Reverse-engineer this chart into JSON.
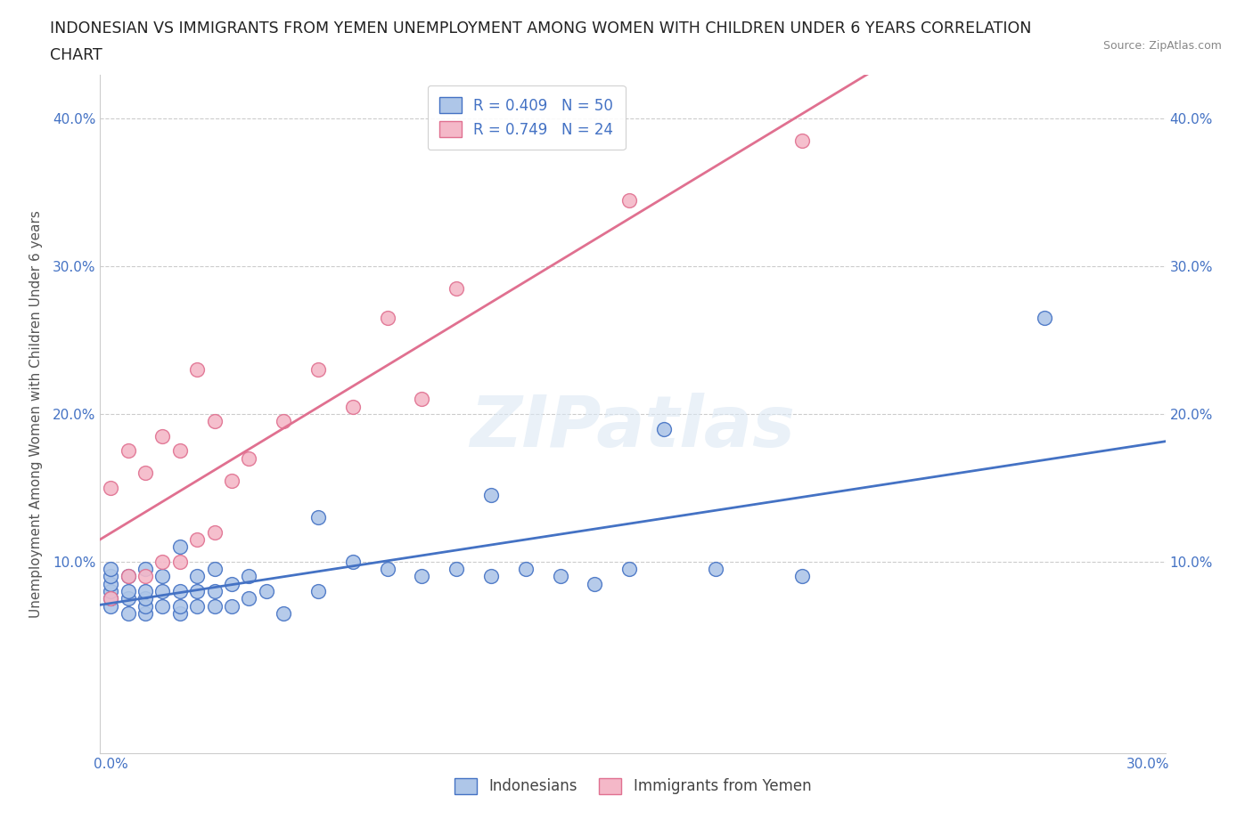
{
  "title_line1": "INDONESIAN VS IMMIGRANTS FROM YEMEN UNEMPLOYMENT AMONG WOMEN WITH CHILDREN UNDER 6 YEARS CORRELATION",
  "title_line2": "CHART",
  "source": "Source: ZipAtlas.com",
  "ylabel": "Unemployment Among Women with Children Under 6 years",
  "xlim": [
    -0.003,
    0.305
  ],
  "ylim": [
    -0.03,
    0.43
  ],
  "yticks": [
    0.0,
    0.1,
    0.2,
    0.3,
    0.4
  ],
  "xticks": [
    0.0,
    0.05,
    0.1,
    0.15,
    0.2,
    0.25,
    0.3
  ],
  "xtick_labels": [
    "0.0%",
    "",
    "",
    "",
    "",
    "",
    "30.0%"
  ],
  "ytick_labels": [
    "",
    "10.0%",
    "20.0%",
    "30.0%",
    "40.0%"
  ],
  "indonesian_R": 0.409,
  "indonesian_N": 50,
  "yemen_R": 0.749,
  "yemen_N": 24,
  "indonesian_color": "#aec6e8",
  "yemen_color": "#f4b8c8",
  "indonesian_line_color": "#4472c4",
  "yemen_line_color": "#e07090",
  "background_color": "#ffffff",
  "watermark": "ZIPatlas",
  "indonesian_x": [
    0.0,
    0.0,
    0.0,
    0.0,
    0.0,
    0.0,
    0.005,
    0.005,
    0.005,
    0.005,
    0.01,
    0.01,
    0.01,
    0.01,
    0.01,
    0.015,
    0.015,
    0.015,
    0.02,
    0.02,
    0.02,
    0.02,
    0.025,
    0.025,
    0.025,
    0.03,
    0.03,
    0.03,
    0.035,
    0.035,
    0.04,
    0.04,
    0.045,
    0.05,
    0.06,
    0.06,
    0.07,
    0.08,
    0.09,
    0.1,
    0.11,
    0.11,
    0.12,
    0.13,
    0.14,
    0.15,
    0.16,
    0.175,
    0.2,
    0.27
  ],
  "indonesian_y": [
    0.07,
    0.075,
    0.08,
    0.085,
    0.09,
    0.095,
    0.065,
    0.075,
    0.08,
    0.09,
    0.065,
    0.07,
    0.075,
    0.08,
    0.095,
    0.07,
    0.08,
    0.09,
    0.065,
    0.07,
    0.08,
    0.11,
    0.07,
    0.08,
    0.09,
    0.07,
    0.08,
    0.095,
    0.07,
    0.085,
    0.075,
    0.09,
    0.08,
    0.065,
    0.08,
    0.13,
    0.1,
    0.095,
    0.09,
    0.095,
    0.09,
    0.145,
    0.095,
    0.09,
    0.085,
    0.095,
    0.19,
    0.095,
    0.09,
    0.265
  ],
  "yemen_x": [
    0.0,
    0.0,
    0.005,
    0.005,
    0.01,
    0.01,
    0.015,
    0.015,
    0.02,
    0.02,
    0.025,
    0.025,
    0.03,
    0.03,
    0.035,
    0.04,
    0.05,
    0.06,
    0.07,
    0.08,
    0.09,
    0.1,
    0.15,
    0.2
  ],
  "yemen_y": [
    0.075,
    0.15,
    0.09,
    0.175,
    0.09,
    0.16,
    0.1,
    0.185,
    0.1,
    0.175,
    0.115,
    0.23,
    0.12,
    0.195,
    0.155,
    0.17,
    0.195,
    0.23,
    0.205,
    0.265,
    0.21,
    0.285,
    0.345,
    0.385
  ],
  "legend_label_indonesian": "Indonesians",
  "legend_label_yemen": "Immigrants from Yemen",
  "title_fontsize": 12.5,
  "axis_label_fontsize": 11,
  "tick_fontsize": 11,
  "legend_fontsize": 12
}
